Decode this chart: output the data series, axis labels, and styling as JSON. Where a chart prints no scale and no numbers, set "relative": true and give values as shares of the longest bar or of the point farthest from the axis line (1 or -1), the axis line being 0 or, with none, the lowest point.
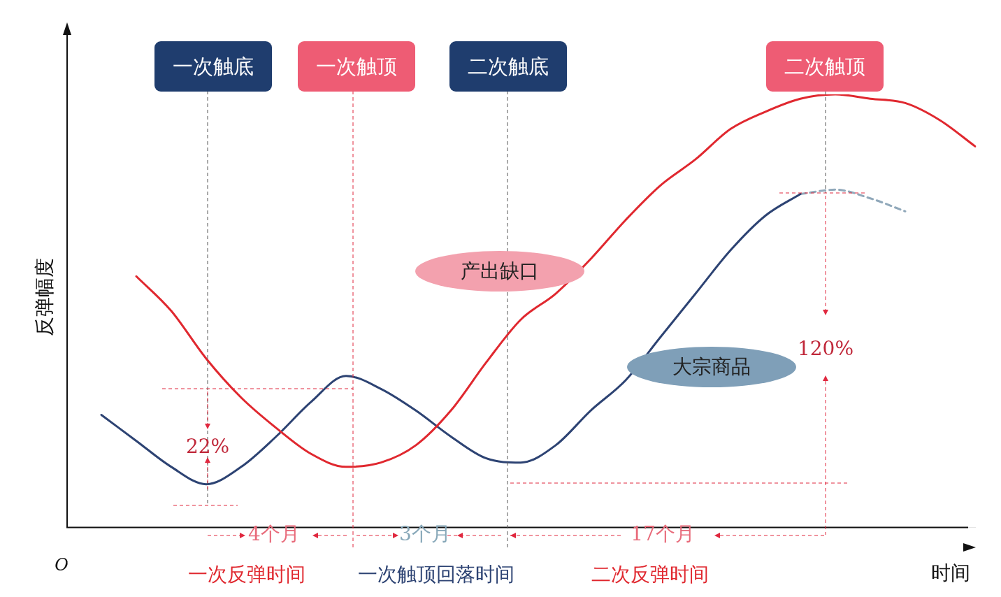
{
  "chart_data": {
    "type": "line",
    "relative": true,
    "legend": false,
    "marker": "none",
    "ylabel": "反弹幅度",
    "xlabel": "时间",
    "categories": [
      null,
      null,
      null,
      null,
      null,
      null,
      null,
      null,
      null,
      null,
      null,
      null,
      null,
      null,
      null,
      null,
      null,
      null,
      null,
      null,
      null,
      null,
      null,
      null,
      null,
      null,
      null
    ],
    "series": [
      {
        "name": "产出缺口",
        "color": "#e0282f",
        "values": [
          null,
          null,
          0.58,
          0.5,
          0.39,
          0.3,
          0.23,
          0.17,
          0.14,
          0.15,
          0.19,
          0.27,
          0.38,
          0.48,
          0.54,
          0.62,
          0.71,
          0.79,
          0.85,
          0.92,
          0.96,
          0.99,
          1,
          0.99,
          0.98,
          0.94,
          0.88
        ]
      },
      {
        "name": "大宗商品",
        "color": "#2d4373",
        "values": [
          null,
          0.26,
          0.2,
          0.14,
          0.1,
          0.14,
          0.21,
          0.29,
          0.35,
          0.32,
          0.27,
          0.21,
          0.16,
          0.15,
          0.19,
          0.27,
          0.34,
          0.44,
          0.54,
          0.64,
          0.72,
          0.77,
          null,
          null,
          null,
          null,
          null
        ]
      },
      {
        "color": "#90a8ba",
        "line_style": "dashed",
        "values": [
          null,
          null,
          null,
          null,
          null,
          null,
          null,
          null,
          null,
          null,
          null,
          null,
          null,
          null,
          null,
          null,
          null,
          null,
          null,
          null,
          null,
          0.77,
          0.78,
          0.76,
          0.73,
          null,
          null
        ]
      }
    ],
    "annotations": [
      "一次触底",
      "一次触顶",
      "二次触底",
      "二次触顶",
      "22%",
      "120%",
      "4个月",
      "3个月",
      "17个月",
      "一次反弹时间",
      "一次触顶回落时间",
      "二次反弹时间",
      "O"
    ]
  }
}
